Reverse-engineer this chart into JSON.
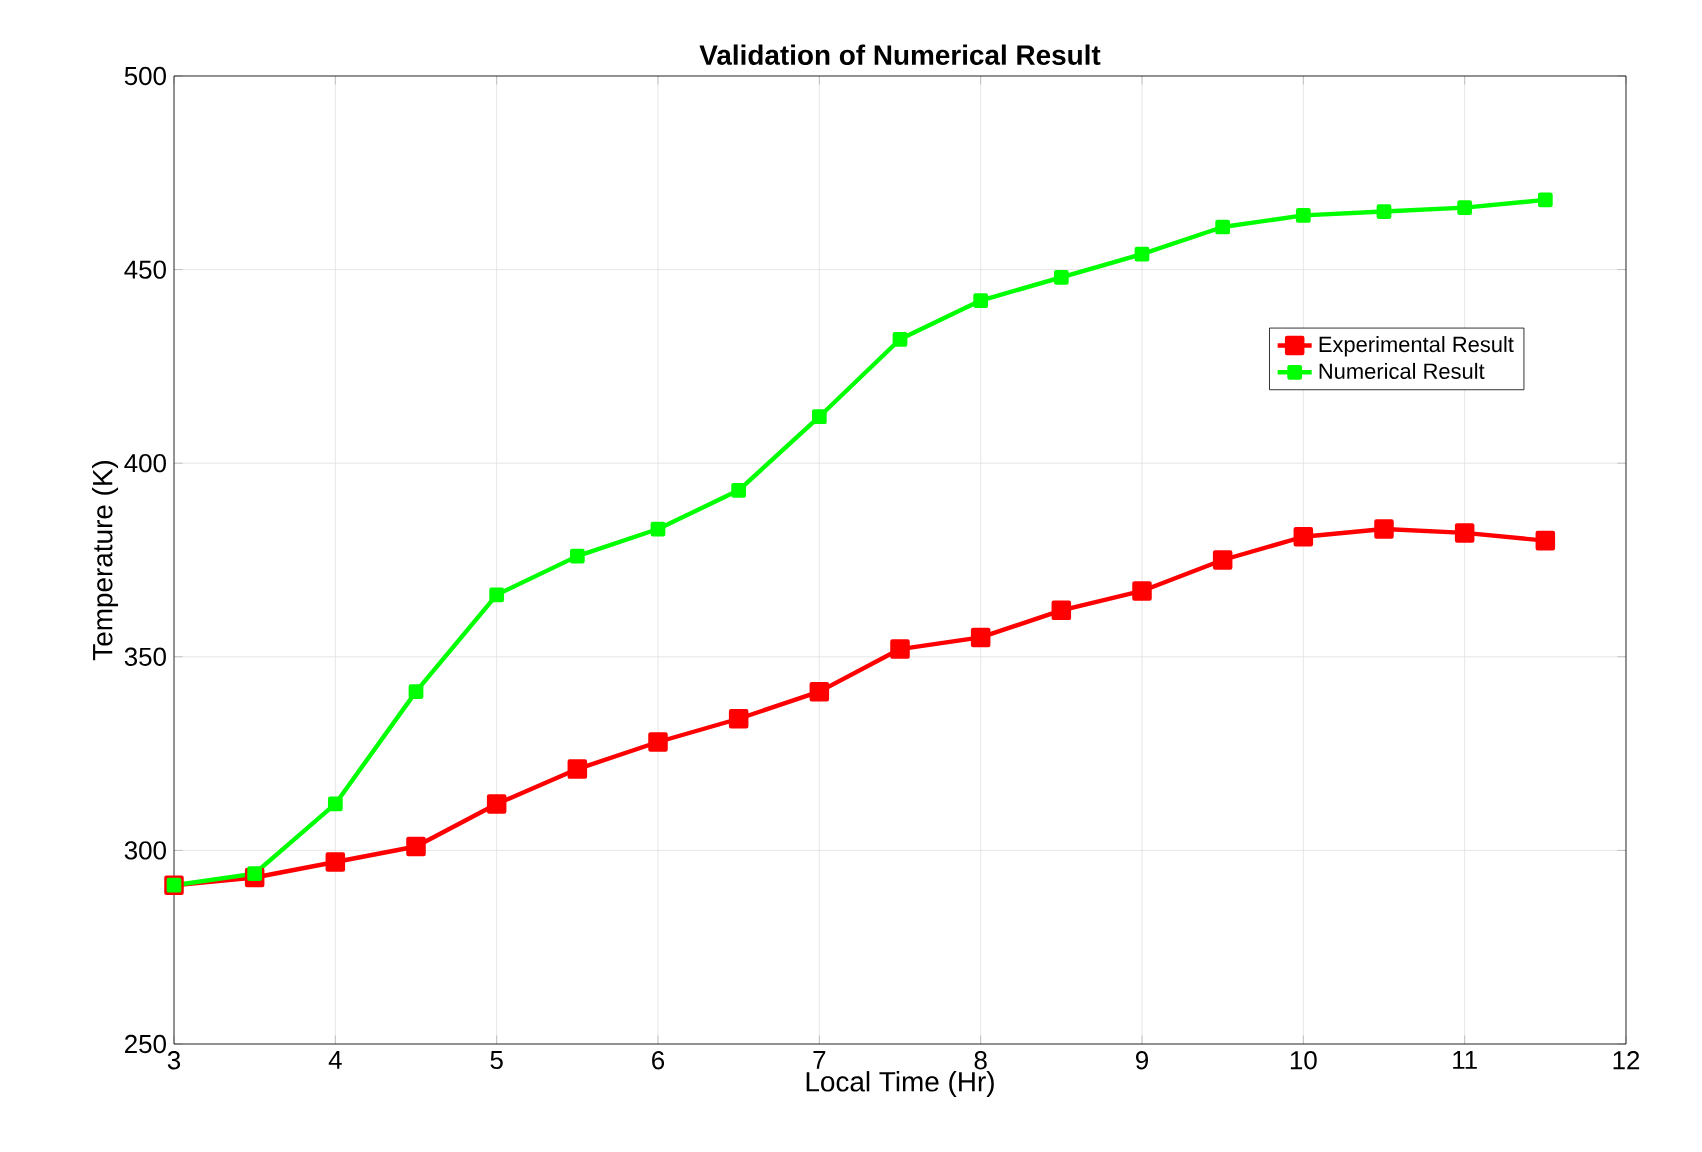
{
  "chart_data": {
    "type": "line",
    "title": "Validation of Numerical Result",
    "xlabel": "Local Time (Hr)",
    "ylabel": "Temperature (K)",
    "x": [
      3,
      3.5,
      4,
      4.5,
      5,
      5.5,
      6,
      6.5,
      7,
      7.5,
      8,
      8.5,
      9,
      9.5,
      10,
      10.5,
      11,
      11.5
    ],
    "series": [
      {
        "name": "Experimental Result",
        "color": "#ff0000",
        "values": [
          291,
          293,
          297,
          301,
          312,
          321,
          328,
          334,
          341,
          352,
          355,
          362,
          367,
          375,
          381,
          383,
          382,
          380
        ]
      },
      {
        "name": "Numerical Result",
        "color": "#00ff00",
        "values": [
          291,
          294,
          312,
          341,
          366,
          376,
          383,
          393,
          412,
          432,
          442,
          448,
          454,
          461,
          464,
          465,
          466,
          468
        ]
      }
    ],
    "xlim": [
      3,
      12
    ],
    "ylim": [
      250,
      500
    ],
    "xticks": [
      3,
      4,
      5,
      6,
      7,
      8,
      9,
      10,
      11,
      12
    ],
    "yticks": [
      250,
      300,
      350,
      400,
      450,
      500
    ],
    "grid": true,
    "legend": "top right",
    "marker": "square",
    "line_style": "solid"
  }
}
